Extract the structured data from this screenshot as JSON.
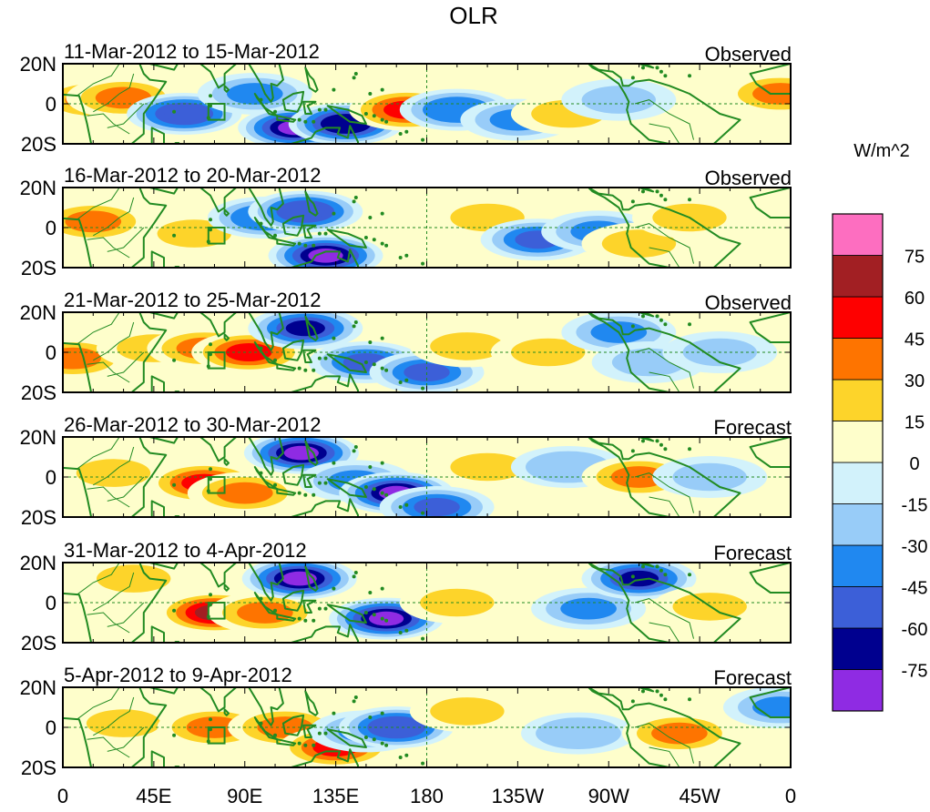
{
  "title": "OLR",
  "units_label": "W/m^2",
  "y_tick_labels": [
    "20N",
    "0",
    "20S"
  ],
  "x_tick_labels": [
    "0",
    "45E",
    "90E",
    "135E",
    "180",
    "135W",
    "90W",
    "45W",
    "0"
  ],
  "panels": [
    {
      "date_range": "11-Mar-2012 to 15-Mar-2012",
      "kind": "Observed"
    },
    {
      "date_range": "16-Mar-2012 to 20-Mar-2012",
      "kind": "Observed"
    },
    {
      "date_range": "21-Mar-2012 to 25-Mar-2012",
      "kind": "Observed"
    },
    {
      "date_range": "26-Mar-2012 to 30-Mar-2012",
      "kind": "Forecast"
    },
    {
      "date_range": "31-Mar-2012 to 4-Apr-2012",
      "kind": "Forecast"
    },
    {
      "date_range": "5-Apr-2012 to 9-Apr-2012",
      "kind": "Forecast"
    }
  ],
  "colorbar": {
    "colors": [
      "#8f2be3",
      "#00008f",
      "#3c5fd8",
      "#2088f0",
      "#98ccf8",
      "#d2f2fb",
      "#fefecb",
      "#fdd42a",
      "#fe7400",
      "#fe0000",
      "#a21f23",
      "#fd6ec0"
    ],
    "labels": [
      "-75",
      "-60",
      "-45",
      "-30",
      "-15",
      "0",
      "15",
      "30",
      "45",
      "60",
      "75"
    ]
  },
  "colors": {
    "coastline": "#228b22",
    "neutral": "#fefecb"
  },
  "anomalies": [
    [
      {
        "lon": 15,
        "lat": 2,
        "value": 30
      },
      {
        "lon": 30,
        "lat": 3,
        "value": 40
      },
      {
        "lon": 60,
        "lat": -5,
        "value": -60
      },
      {
        "lon": 95,
        "lat": 5,
        "value": -40
      },
      {
        "lon": 115,
        "lat": -12,
        "value": -85
      },
      {
        "lon": 140,
        "lat": -10,
        "value": -75
      },
      {
        "lon": 170,
        "lat": -3,
        "value": 50
      },
      {
        "lon": 195,
        "lat": -3,
        "value": -45
      },
      {
        "lon": 225,
        "lat": -8,
        "value": -40
      },
      {
        "lon": 250,
        "lat": -5,
        "value": 20
      },
      {
        "lon": 275,
        "lat": 2,
        "value": -20
      },
      {
        "lon": 355,
        "lat": 5,
        "value": 30
      }
    ],
    [
      {
        "lon": 15,
        "lat": 3,
        "value": 40
      },
      {
        "lon": 65,
        "lat": -3,
        "value": 25
      },
      {
        "lon": 100,
        "lat": 5,
        "value": -45
      },
      {
        "lon": 120,
        "lat": 8,
        "value": -60
      },
      {
        "lon": 130,
        "lat": -14,
        "value": -85
      },
      {
        "lon": 210,
        "lat": 5,
        "value": 25
      },
      {
        "lon": 235,
        "lat": -6,
        "value": -50
      },
      {
        "lon": 265,
        "lat": -2,
        "value": -35
      },
      {
        "lon": 285,
        "lat": -8,
        "value": 25
      },
      {
        "lon": 310,
        "lat": 5,
        "value": 20
      }
    ],
    [
      {
        "lon": 5,
        "lat": -3,
        "value": 30
      },
      {
        "lon": 45,
        "lat": 2,
        "value": 25
      },
      {
        "lon": 70,
        "lat": 2,
        "value": 40
      },
      {
        "lon": 92,
        "lat": 0,
        "value": 55
      },
      {
        "lon": 120,
        "lat": 12,
        "value": -70
      },
      {
        "lon": 150,
        "lat": -5,
        "value": -50
      },
      {
        "lon": 180,
        "lat": -10,
        "value": -55
      },
      {
        "lon": 200,
        "lat": 3,
        "value": 20
      },
      {
        "lon": 240,
        "lat": 0,
        "value": 25
      },
      {
        "lon": 275,
        "lat": 10,
        "value": -40
      },
      {
        "lon": 290,
        "lat": -5,
        "value": -25
      },
      {
        "lon": 325,
        "lat": 0,
        "value": -20
      }
    ],
    [
      {
        "lon": 25,
        "lat": 2,
        "value": 15
      },
      {
        "lon": 70,
        "lat": -3,
        "value": 55
      },
      {
        "lon": 90,
        "lat": -8,
        "value": 35
      },
      {
        "lon": 118,
        "lat": 12,
        "value": -85
      },
      {
        "lon": 145,
        "lat": -2,
        "value": -40
      },
      {
        "lon": 165,
        "lat": -8,
        "value": -85
      },
      {
        "lon": 185,
        "lat": -15,
        "value": -55
      },
      {
        "lon": 210,
        "lat": 5,
        "value": 25
      },
      {
        "lon": 250,
        "lat": 5,
        "value": -30
      },
      {
        "lon": 285,
        "lat": 0,
        "value": 30
      },
      {
        "lon": 320,
        "lat": 0,
        "value": -25
      }
    ],
    [
      {
        "lon": 35,
        "lat": 12,
        "value": 20
      },
      {
        "lon": 75,
        "lat": -5,
        "value": 60
      },
      {
        "lon": 100,
        "lat": -5,
        "value": 35
      },
      {
        "lon": 117,
        "lat": 12,
        "value": -85
      },
      {
        "lon": 160,
        "lat": -8,
        "value": -85
      },
      {
        "lon": 195,
        "lat": 0,
        "value": 15
      },
      {
        "lon": 260,
        "lat": -3,
        "value": -40
      },
      {
        "lon": 285,
        "lat": 12,
        "value": -65
      },
      {
        "lon": 320,
        "lat": -2,
        "value": 25
      }
    ],
    [
      {
        "lon": 30,
        "lat": 2,
        "value": 15
      },
      {
        "lon": 75,
        "lat": 0,
        "value": 40
      },
      {
        "lon": 110,
        "lat": 0,
        "value": 30
      },
      {
        "lon": 135,
        "lat": -10,
        "value": 55
      },
      {
        "lon": 150,
        "lat": -2,
        "value": -40
      },
      {
        "lon": 165,
        "lat": 0,
        "value": -60
      },
      {
        "lon": 200,
        "lat": 8,
        "value": 25
      },
      {
        "lon": 255,
        "lat": -3,
        "value": -30
      },
      {
        "lon": 305,
        "lat": -3,
        "value": 35
      },
      {
        "lon": 355,
        "lat": 10,
        "value": -40
      }
    ]
  ]
}
